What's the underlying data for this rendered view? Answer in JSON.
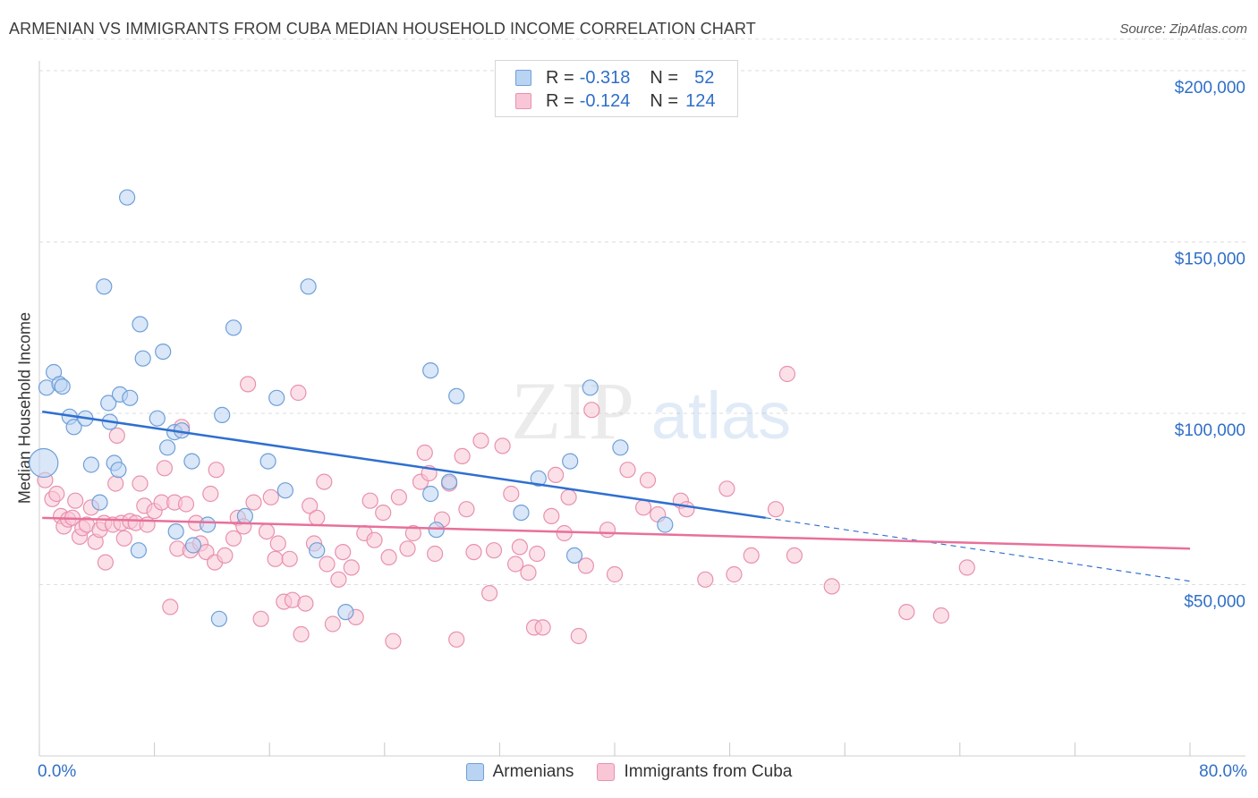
{
  "title": "ARMENIAN VS IMMIGRANTS FROM CUBA MEDIAN HOUSEHOLD INCOME CORRELATION CHART",
  "source": "Source: ZipAtlas.com",
  "watermark": {
    "zip": "ZIP",
    "atlas": "atlas"
  },
  "colors": {
    "armenians_fill": "#b9d3f2",
    "armenians_stroke": "#6f9fd8",
    "armenians_line": "#2f6fd0",
    "cuba_fill": "#f9c6d6",
    "cuba_stroke": "#e891ae",
    "cuba_line": "#e8709a",
    "axis_text": "#2f6fc7",
    "grid": "#dddddd"
  },
  "legend": {
    "armenians": {
      "r_label": "R =",
      "r_value": "-0.318",
      "n_label": "N =",
      "n_value": "52"
    },
    "cuba": {
      "r_label": "R =",
      "r_value": "-0.124",
      "n_label": "N =",
      "n_value": "124"
    }
  },
  "chart_data": {
    "type": "scatter",
    "title": "ARMENIAN VS IMMIGRANTS FROM CUBA MEDIAN HOUSEHOLD INCOME CORRELATION CHART",
    "xlabel": "",
    "ylabel": "Median Household Income",
    "xlim": [
      0,
      80
    ],
    "ylim": [
      0,
      210000
    ],
    "x_tick_labels": [
      "0.0%",
      "80.0%"
    ],
    "y_ticks": [
      50000,
      100000,
      150000,
      200000
    ],
    "y_tick_labels": [
      "$50,000",
      "$100,000",
      "$150,000",
      "$200,000"
    ],
    "grid": true,
    "legend_position": "top-center and bottom",
    "series": [
      {
        "name": "Armenians",
        "r": -0.318,
        "n": 52,
        "trend": {
          "x_start": 0.2,
          "y_start": 100500,
          "x_end": 50.5,
          "y_end": 69500,
          "dashed_to_x": 80,
          "dashed_to_y": 51000
        },
        "points": [
          [
            0.3,
            85500,
            "big"
          ],
          [
            0.5,
            107500
          ],
          [
            1.0,
            112000
          ],
          [
            1.4,
            108500
          ],
          [
            1.6,
            107800
          ],
          [
            2.1,
            99000
          ],
          [
            2.4,
            96000
          ],
          [
            3.2,
            98500
          ],
          [
            3.6,
            85000
          ],
          [
            4.2,
            74000
          ],
          [
            4.5,
            137000
          ],
          [
            4.8,
            103000
          ],
          [
            4.9,
            97500
          ],
          [
            5.2,
            85500
          ],
          [
            5.5,
            83500
          ],
          [
            5.6,
            105500
          ],
          [
            6.1,
            163000
          ],
          [
            6.3,
            104500
          ],
          [
            6.9,
            60000
          ],
          [
            7.0,
            126000
          ],
          [
            7.2,
            116000
          ],
          [
            8.2,
            98500
          ],
          [
            8.6,
            118000
          ],
          [
            8.9,
            90000
          ],
          [
            9.4,
            94500
          ],
          [
            9.5,
            65500
          ],
          [
            9.9,
            95000
          ],
          [
            10.6,
            86000
          ],
          [
            11.7,
            67500
          ],
          [
            10.7,
            61500
          ],
          [
            12.5,
            40000
          ],
          [
            12.7,
            99500
          ],
          [
            13.5,
            125000
          ],
          [
            14.3,
            70000
          ],
          [
            15.9,
            86000
          ],
          [
            16.5,
            104500
          ],
          [
            17.1,
            77500
          ],
          [
            18.7,
            137000
          ],
          [
            19.3,
            60000
          ],
          [
            21.3,
            42000
          ],
          [
            27.2,
            112500
          ],
          [
            27.2,
            76500
          ],
          [
            27.6,
            66000
          ],
          [
            28.5,
            80000
          ],
          [
            29.0,
            105000
          ],
          [
            33.5,
            71000
          ],
          [
            34.7,
            81000
          ],
          [
            36.9,
            86000
          ],
          [
            37.2,
            58500
          ],
          [
            38.3,
            107500
          ],
          [
            40.4,
            90000
          ],
          [
            43.5,
            67500
          ]
        ]
      },
      {
        "name": "Immigrants from Cuba",
        "r": -0.124,
        "n": 124,
        "trend": {
          "x_start": 0.2,
          "y_start": 69500,
          "x_end": 80,
          "y_end": 60500
        },
        "points": [
          [
            0.4,
            80500
          ],
          [
            0.9,
            75000
          ],
          [
            1.2,
            76500
          ],
          [
            1.5,
            70000
          ],
          [
            1.7,
            67000
          ],
          [
            2.0,
            69000
          ],
          [
            2.3,
            69500
          ],
          [
            2.5,
            74500
          ],
          [
            2.8,
            64000
          ],
          [
            3.0,
            66500
          ],
          [
            3.3,
            67500
          ],
          [
            3.6,
            72500
          ],
          [
            3.9,
            62500
          ],
          [
            4.2,
            66000
          ],
          [
            4.5,
            68000
          ],
          [
            4.6,
            56500
          ],
          [
            5.1,
            67500
          ],
          [
            5.3,
            79500
          ],
          [
            5.4,
            93500
          ],
          [
            5.7,
            68000
          ],
          [
            5.9,
            63500
          ],
          [
            6.3,
            68500
          ],
          [
            6.7,
            68000
          ],
          [
            7.0,
            79500
          ],
          [
            7.3,
            73000
          ],
          [
            7.5,
            67500
          ],
          [
            8.0,
            71500
          ],
          [
            8.5,
            74000
          ],
          [
            8.7,
            84000
          ],
          [
            9.1,
            43500
          ],
          [
            9.4,
            74000
          ],
          [
            9.6,
            60500
          ],
          [
            9.9,
            96000
          ],
          [
            10.2,
            73500
          ],
          [
            10.5,
            60000
          ],
          [
            10.9,
            68000
          ],
          [
            11.2,
            62000
          ],
          [
            11.6,
            59500
          ],
          [
            11.9,
            76500
          ],
          [
            12.2,
            56500
          ],
          [
            12.3,
            83500
          ],
          [
            12.9,
            58500
          ],
          [
            13.5,
            63500
          ],
          [
            13.8,
            69500
          ],
          [
            14.2,
            67000
          ],
          [
            14.5,
            108500
          ],
          [
            14.9,
            74000
          ],
          [
            15.4,
            40000
          ],
          [
            15.8,
            65500
          ],
          [
            16.1,
            75500
          ],
          [
            16.4,
            57500
          ],
          [
            16.6,
            62000
          ],
          [
            17.0,
            45000
          ],
          [
            17.4,
            57500
          ],
          [
            17.6,
            45500
          ],
          [
            18.0,
            106000
          ],
          [
            18.2,
            35500
          ],
          [
            18.5,
            44500
          ],
          [
            18.8,
            73000
          ],
          [
            19.1,
            62000
          ],
          [
            19.3,
            69500
          ],
          [
            19.8,
            80000
          ],
          [
            20.0,
            56000
          ],
          [
            20.4,
            38500
          ],
          [
            20.8,
            51500
          ],
          [
            21.1,
            59500
          ],
          [
            21.7,
            55000
          ],
          [
            22.0,
            40500
          ],
          [
            22.6,
            65000
          ],
          [
            23.0,
            74500
          ],
          [
            23.3,
            63000
          ],
          [
            23.9,
            71000
          ],
          [
            24.3,
            58000
          ],
          [
            24.6,
            33500
          ],
          [
            25.0,
            75500
          ],
          [
            25.6,
            60500
          ],
          [
            26.0,
            65000
          ],
          [
            26.5,
            80000
          ],
          [
            26.8,
            88500
          ],
          [
            27.1,
            82500
          ],
          [
            27.5,
            59000
          ],
          [
            28.0,
            69000
          ],
          [
            28.5,
            79500
          ],
          [
            29.0,
            34000
          ],
          [
            29.4,
            87500
          ],
          [
            29.7,
            72000
          ],
          [
            30.2,
            59500
          ],
          [
            30.7,
            92000
          ],
          [
            31.3,
            47500
          ],
          [
            31.6,
            60000
          ],
          [
            32.2,
            90500
          ],
          [
            32.8,
            76500
          ],
          [
            33.1,
            56000
          ],
          [
            33.4,
            61000
          ],
          [
            34.0,
            53500
          ],
          [
            34.4,
            37500
          ],
          [
            34.6,
            59000
          ],
          [
            35.0,
            37500
          ],
          [
            35.6,
            70000
          ],
          [
            35.9,
            82000
          ],
          [
            36.5,
            65000
          ],
          [
            36.8,
            75500
          ],
          [
            37.5,
            35000
          ],
          [
            38.0,
            55500
          ],
          [
            38.4,
            101000
          ],
          [
            39.5,
            66000
          ],
          [
            40.0,
            53000
          ],
          [
            40.9,
            83500
          ],
          [
            42.0,
            72500
          ],
          [
            42.3,
            80500
          ],
          [
            43.0,
            70500
          ],
          [
            44.6,
            74500
          ],
          [
            45.0,
            72000
          ],
          [
            46.3,
            51500
          ],
          [
            47.8,
            78000
          ],
          [
            48.3,
            53000
          ],
          [
            49.5,
            58500
          ],
          [
            51.2,
            72000
          ],
          [
            52.0,
            111500
          ],
          [
            52.5,
            58500
          ],
          [
            55.1,
            49500
          ],
          [
            60.3,
            42000
          ],
          [
            62.7,
            41000
          ],
          [
            64.5,
            55000
          ]
        ]
      }
    ]
  }
}
